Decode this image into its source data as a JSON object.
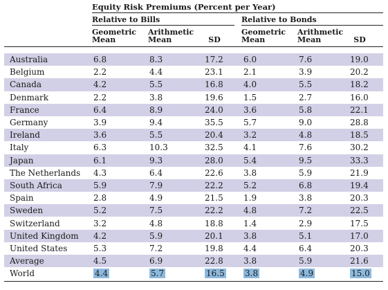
{
  "title": "Equity Risk Premiums (Percent per Year)",
  "groups": {
    "bills": "Relative to Bills",
    "bonds": "Relative to Bonds"
  },
  "columns": {
    "geometric": [
      "Geometric",
      "Mean"
    ],
    "arithmetic": [
      "Arithmetic",
      "Mean"
    ],
    "sd": "SD"
  },
  "rows": [
    {
      "country": "Australia",
      "values": [
        "6.8",
        "8.3",
        "17.2",
        "6.0",
        "7.6",
        "19.0"
      ]
    },
    {
      "country": "Belgium",
      "values": [
        "2.2",
        "4.4",
        "23.1",
        "2.1",
        "3.9",
        "20.2"
      ]
    },
    {
      "country": "Canada",
      "values": [
        "4.2",
        "5.5",
        "16.8",
        "4.0",
        "5.5",
        "18.2"
      ]
    },
    {
      "country": "Denmark",
      "values": [
        "2.2",
        "3.8",
        "19.6",
        "1.5",
        "2.7",
        "16.0"
      ]
    },
    {
      "country": "France",
      "values": [
        "6.4",
        "8.9",
        "24.0",
        "3.6",
        "5.8",
        "22.1"
      ]
    },
    {
      "country": "Germany",
      "values": [
        "3.9",
        "9.4",
        "35.5",
        "5.7",
        "9.0",
        "28.8"
      ]
    },
    {
      "country": "Ireland",
      "values": [
        "3.6",
        "5.5",
        "20.4",
        "3.2",
        "4.8",
        "18.5"
      ]
    },
    {
      "country": "Italy",
      "values": [
        "6.3",
        "10.3",
        "32.5",
        "4.1",
        "7.6",
        "30.2"
      ]
    },
    {
      "country": "Japan",
      "values": [
        "6.1",
        "9.3",
        "28.0",
        "5.4",
        "9.5",
        "33.3"
      ]
    },
    {
      "country": "The Netherlands",
      "values": [
        "4.3",
        "6.4",
        "22.6",
        "3.8",
        "5.9",
        "21.9"
      ]
    },
    {
      "country": "South Africa",
      "values": [
        "5.9",
        "7.9",
        "22.2",
        "5.2",
        "6.8",
        "19.4"
      ]
    },
    {
      "country": "Spain",
      "values": [
        "2.8",
        "4.9",
        "21.5",
        "1.9",
        "3.8",
        "20.3"
      ]
    },
    {
      "country": "Sweden",
      "values": [
        "5.2",
        "7.5",
        "22.2",
        "4.8",
        "7.2",
        "22.5"
      ]
    },
    {
      "country": "Switzerland",
      "values": [
        "3.2",
        "4.8",
        "18.8",
        "1.4",
        "2.9",
        "17.5"
      ]
    },
    {
      "country": "United Kingdom",
      "values": [
        "4.2",
        "5.9",
        "20.1",
        "3.8",
        "5.1",
        "17.0"
      ]
    },
    {
      "country": "United States",
      "values": [
        "5.3",
        "7.2",
        "19.8",
        "4.4",
        "6.4",
        "20.3"
      ]
    },
    {
      "country": "Average",
      "values": [
        "4.5",
        "6.9",
        "22.8",
        "3.8",
        "5.9",
        "21.6"
      ]
    },
    {
      "country": "World",
      "values": [
        "4.4",
        "5.7",
        "16.5",
        "3.8",
        "4.9",
        "15.0"
      ],
      "highlight": true
    }
  ],
  "colors": {
    "row_shade": "#d2d0e6",
    "highlight": "#8db9de"
  }
}
